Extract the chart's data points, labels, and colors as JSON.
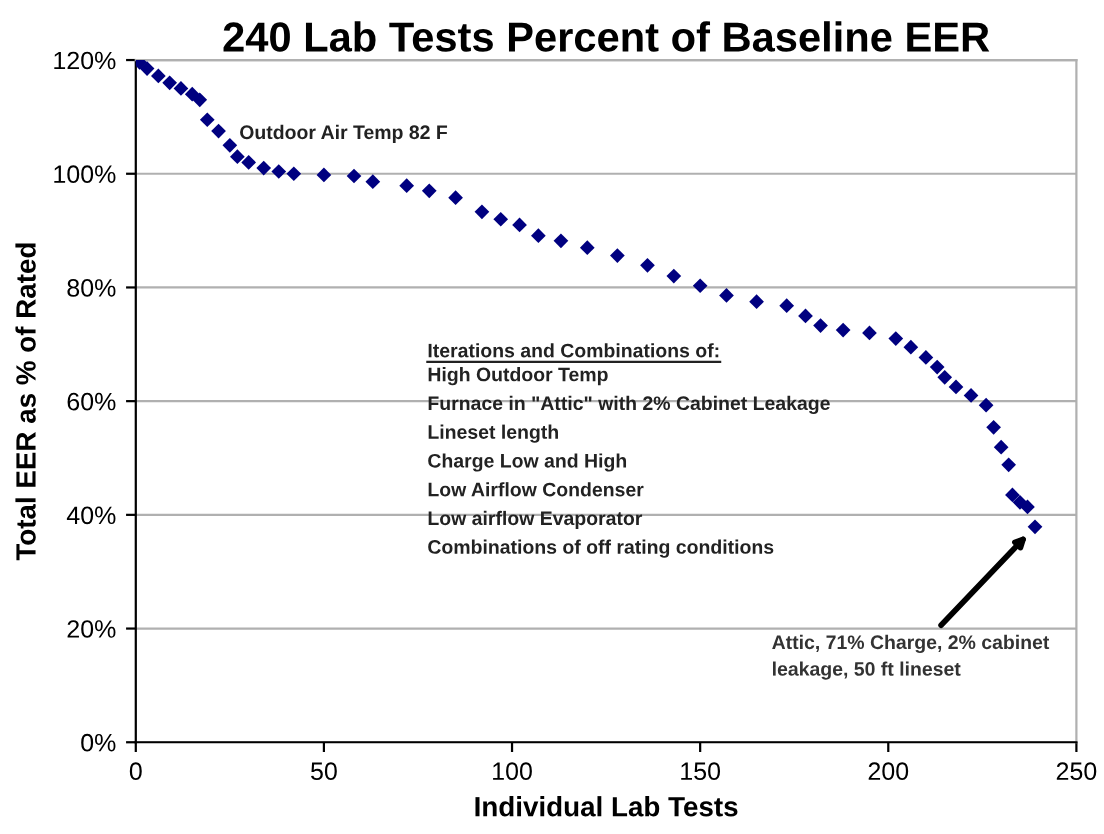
{
  "chart_data": {
    "type": "scatter",
    "title": "240 Lab Tests Percent of Baseline EER",
    "xlabel": "Individual Lab Tests",
    "ylabel": "Total EER as % of Rated",
    "x": [
      1,
      3,
      6,
      9,
      12,
      15,
      17,
      19,
      22,
      25,
      27,
      30,
      34,
      38,
      42,
      50,
      58,
      63,
      72,
      78,
      85,
      92,
      97,
      102,
      107,
      113,
      120,
      128,
      136,
      143,
      150,
      157,
      165,
      173,
      178,
      182,
      188,
      195,
      202,
      206,
      210,
      213,
      215,
      218,
      222,
      226,
      228,
      230,
      232,
      233,
      235,
      237,
      239
    ],
    "series": [
      {
        "color": "#000080",
        "values": [
          119.6,
          118.5,
          117.2,
          116,
          115,
          114,
          113,
          109.5,
          107.5,
          105,
          103,
          102,
          101,
          100.4,
          100,
          99.8,
          99.6,
          98.6,
          97.9,
          97,
          95.8,
          93.3,
          92,
          91,
          89.1,
          88.2,
          87,
          85.6,
          83.9,
          82,
          80.3,
          78.6,
          77.5,
          76.8,
          75,
          73.3,
          72.5,
          72,
          71,
          69.5,
          67.7,
          66,
          64.2,
          62.5,
          61,
          59.3,
          55.4,
          51.9,
          48.8,
          43.5,
          42.2,
          41.4,
          37.9
        ]
      }
    ],
    "xlim": [
      0,
      250
    ],
    "xticks": [
      0,
      50,
      100,
      150,
      200,
      250
    ],
    "ylim": [
      0,
      120
    ],
    "yticks": [
      {
        "value": 0,
        "label": "0%"
      },
      {
        "value": 20,
        "label": "20%"
      },
      {
        "value": 40,
        "label": "40%"
      },
      {
        "value": 60,
        "label": "60%"
      },
      {
        "value": 80,
        "label": "80%"
      },
      {
        "value": 100,
        "label": "100%"
      },
      {
        "value": 120,
        "label": "120%"
      }
    ],
    "grid": "y",
    "marker": "diamond",
    "annotations": [
      "Outdoor Air Temp 82 F",
      "Iterations and Combinations of:",
      "High Outdoor Temp\nFurnace in \"Attic\" with 2% Cabinet Leakage\nLineset length\nCharge Low and High\nLow Airflow Condenser\nLow airflow Evaporator\nCombinations of off rating conditions",
      {
        "text": "Attic, 71% Charge, 2% cabinet\nleakage, 50 ft lineset",
        "x": 239,
        "y": 37.9
      }
    ]
  }
}
